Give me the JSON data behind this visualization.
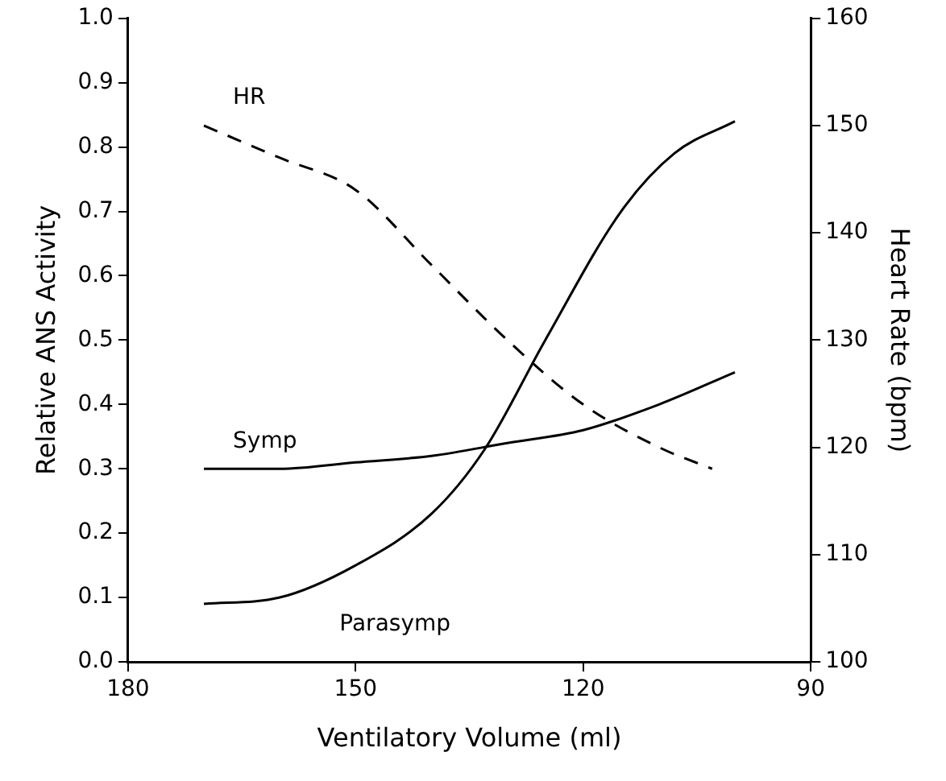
{
  "chart_data": {
    "type": "line",
    "xlabel": "Ventilatory Volume (ml)",
    "ylabel": "Relative ANS Activity",
    "y2label": "Heart Rate (bpm)",
    "xlim": [
      180,
      90
    ],
    "xticks": [
      180,
      150,
      120,
      90
    ],
    "ylim": [
      0,
      1
    ],
    "yticks": [
      {
        "value": 0,
        "label": "0.0"
      },
      0.1,
      0.2,
      0.3,
      0.4,
      0.5,
      0.6,
      0.7,
      0.8,
      0.9,
      {
        "value": 1,
        "label": "1.0"
      }
    ],
    "y2lim": [
      100,
      160
    ],
    "y2ticks": [
      100,
      110,
      120,
      130,
      140,
      150,
      160
    ],
    "grid": false,
    "legend": false,
    "marker": "none",
    "series": [
      {
        "name": "HR",
        "color": "#000000",
        "axis": "y2",
        "line_style": "dashed",
        "x": [
          170,
          160,
          150,
          140,
          130,
          120,
          110,
          103
        ],
        "values": [
          150,
          147,
          144,
          137,
          130,
          124,
          120,
          118
        ]
      },
      {
        "name": "Symp",
        "color": "#000000",
        "line_style": "solid",
        "x": [
          170,
          160,
          150,
          140,
          130,
          120,
          110,
          100
        ],
        "values": [
          0.3,
          0.3,
          0.31,
          0.32,
          0.34,
          0.36,
          0.4,
          0.45
        ]
      },
      {
        "name": "Parasymp",
        "color": "#000000",
        "line_style": "solid",
        "x": [
          170,
          160,
          150,
          140,
          133,
          125,
          115,
          108,
          100
        ],
        "values": [
          0.09,
          0.1,
          0.15,
          0.23,
          0.33,
          0.5,
          0.7,
          0.79,
          0.84
        ]
      }
    ]
  }
}
